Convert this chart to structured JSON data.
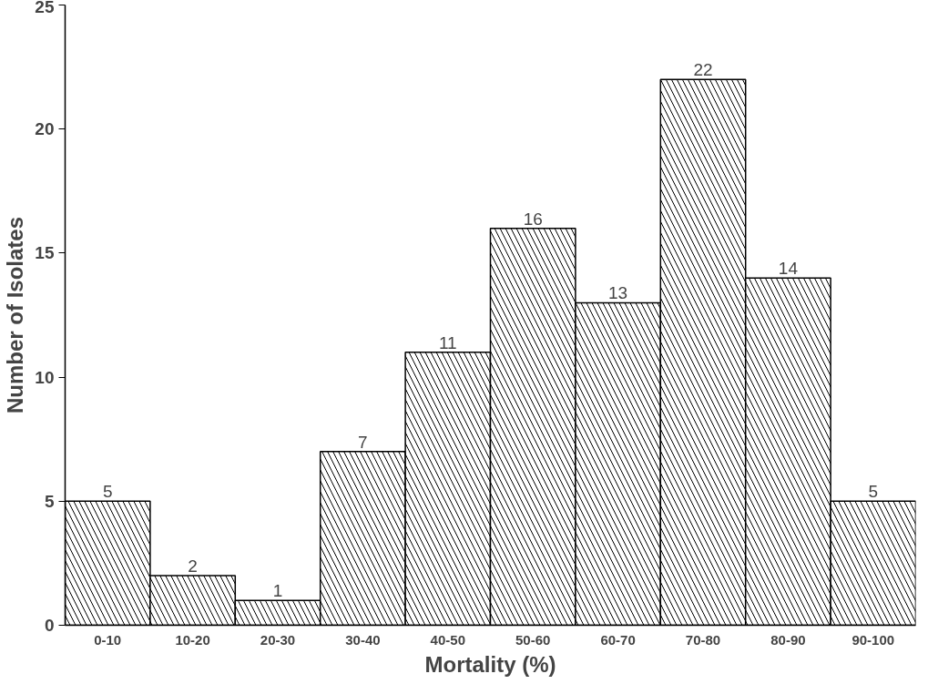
{
  "chart_data": {
    "type": "bar",
    "xlabel": "Mortality (%)",
    "ylabel": "Number of Isolates",
    "categories": [
      "0-10",
      "10-20",
      "20-30",
      "30-40",
      "40-50",
      "50-60",
      "60-70",
      "70-80",
      "80-90",
      "90-100"
    ],
    "values": [
      5,
      2,
      1,
      7,
      11,
      16,
      13,
      22,
      14,
      5
    ],
    "color": "#ffffff",
    "ylim": [
      0,
      25
    ],
    "yticks": [
      0,
      5,
      10,
      15,
      20,
      25
    ],
    "data_labels": true,
    "grid": false
  }
}
